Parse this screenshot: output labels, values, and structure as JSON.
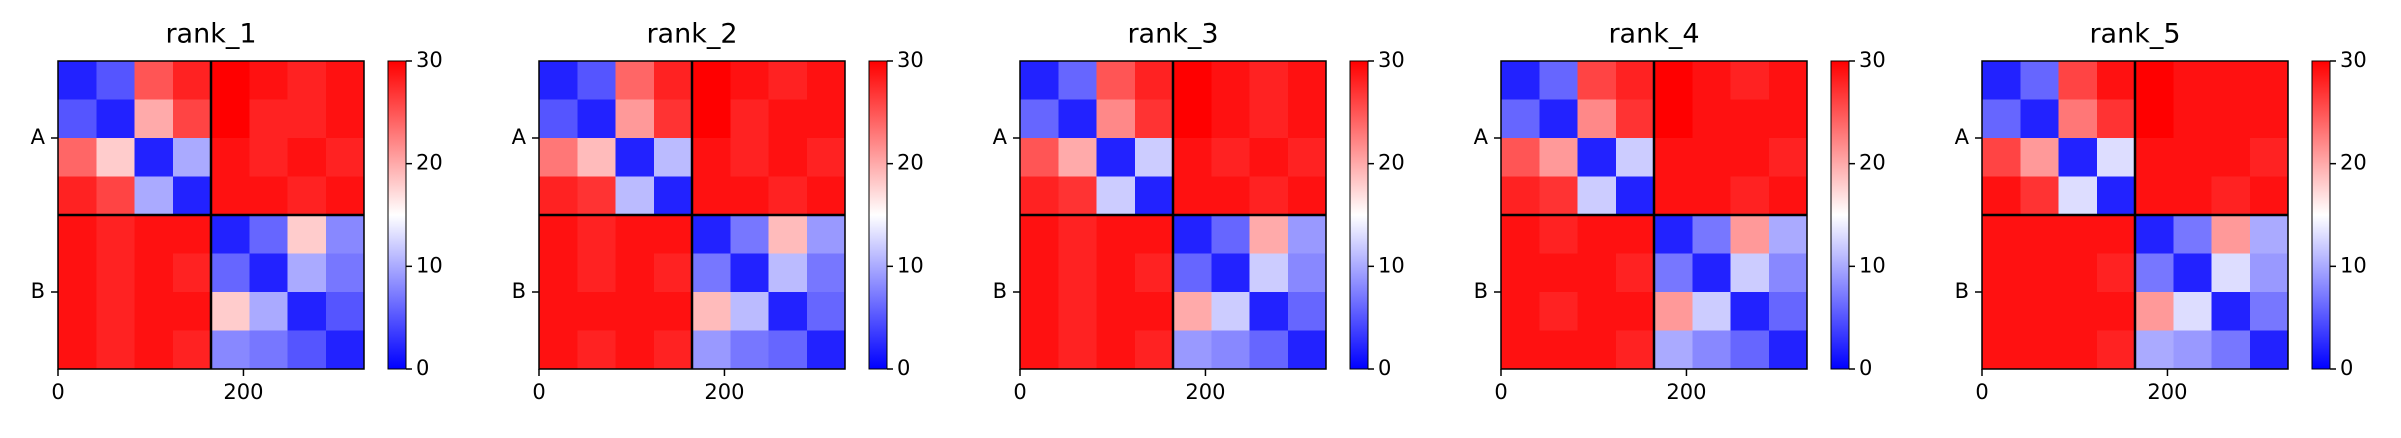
{
  "chart_data": [
    {
      "type": "heatmap",
      "title": "rank_1",
      "cmap": "bwr",
      "xlim": [
        0,
        330
      ],
      "ylim": [
        330,
        0
      ],
      "xticks": [
        0,
        200
      ],
      "yticks": [
        {
          "value": 82.5,
          "label": "A"
        },
        {
          "value": 247.5,
          "label": "B"
        }
      ],
      "chain_breaks": [
        165
      ],
      "clim": [
        0,
        30
      ],
      "cticks": [
        0,
        10,
        20,
        30
      ],
      "z": [
        [
          2,
          5,
          25,
          28,
          30,
          29,
          28,
          29
        ],
        [
          5,
          2,
          20,
          26,
          30,
          28,
          28,
          29
        ],
        [
          24,
          18,
          2,
          10,
          29,
          28,
          29,
          28
        ],
        [
          28,
          26,
          10,
          2,
          29,
          29,
          28,
          29
        ],
        [
          29,
          28,
          29,
          29,
          2,
          6,
          18,
          8
        ],
        [
          29,
          28,
          29,
          28,
          6,
          2,
          10,
          7
        ],
        [
          29,
          28,
          29,
          29,
          18,
          10,
          2,
          5
        ],
        [
          29,
          28,
          29,
          28,
          8,
          7,
          5,
          2
        ]
      ]
    },
    {
      "type": "heatmap",
      "title": "rank_2",
      "cmap": "bwr",
      "xlim": [
        0,
        330
      ],
      "ylim": [
        330,
        0
      ],
      "xticks": [
        0,
        200
      ],
      "yticks": [
        {
          "value": 82.5,
          "label": "A"
        },
        {
          "value": 247.5,
          "label": "B"
        }
      ],
      "chain_breaks": [
        165
      ],
      "clim": [
        0,
        30
      ],
      "cticks": [
        0,
        10,
        20,
        30
      ],
      "z": [
        [
          2,
          5,
          24,
          28,
          30,
          29,
          28,
          29
        ],
        [
          5,
          2,
          21,
          27,
          30,
          28,
          29,
          29
        ],
        [
          23,
          19,
          2,
          11,
          29,
          28,
          29,
          28
        ],
        [
          28,
          27,
          11,
          2,
          29,
          29,
          28,
          29
        ],
        [
          29,
          28,
          29,
          29,
          2,
          7,
          19,
          9
        ],
        [
          29,
          28,
          29,
          28,
          7,
          2,
          11,
          7
        ],
        [
          29,
          29,
          29,
          29,
          19,
          11,
          2,
          6
        ],
        [
          29,
          28,
          29,
          28,
          9,
          7,
          6,
          2
        ]
      ]
    },
    {
      "type": "heatmap",
      "title": "rank_3",
      "cmap": "bwr",
      "xlim": [
        0,
        330
      ],
      "ylim": [
        330,
        0
      ],
      "xticks": [
        0,
        200
      ],
      "yticks": [
        {
          "value": 82.5,
          "label": "A"
        },
        {
          "value": 247.5,
          "label": "B"
        }
      ],
      "chain_breaks": [
        165
      ],
      "clim": [
        0,
        30
      ],
      "cticks": [
        0,
        10,
        20,
        30
      ],
      "z": [
        [
          2,
          6,
          25,
          28,
          30,
          29,
          28,
          29
        ],
        [
          6,
          2,
          22,
          27,
          30,
          29,
          28,
          29
        ],
        [
          25,
          20,
          2,
          12,
          29,
          28,
          29,
          28
        ],
        [
          28,
          27,
          12,
          2,
          29,
          29,
          28,
          29
        ],
        [
          29,
          28,
          29,
          29,
          2,
          6,
          20,
          9
        ],
        [
          29,
          28,
          29,
          28,
          6,
          2,
          12,
          8
        ],
        [
          29,
          28,
          29,
          29,
          20,
          12,
          2,
          6
        ],
        [
          29,
          28,
          29,
          28,
          9,
          8,
          6,
          2
        ]
      ]
    },
    {
      "type": "heatmap",
      "title": "rank_4",
      "cmap": "bwr",
      "xlim": [
        0,
        330
      ],
      "ylim": [
        330,
        0
      ],
      "xticks": [
        0,
        200
      ],
      "yticks": [
        {
          "value": 82.5,
          "label": "A"
        },
        {
          "value": 247.5,
          "label": "B"
        }
      ],
      "chain_breaks": [
        165
      ],
      "clim": [
        0,
        30
      ],
      "cticks": [
        0,
        10,
        20,
        30
      ],
      "z": [
        [
          2,
          6,
          26,
          28,
          30,
          29,
          28,
          29
        ],
        [
          6,
          2,
          22,
          27,
          30,
          29,
          29,
          29
        ],
        [
          25,
          21,
          2,
          12,
          29,
          29,
          29,
          28
        ],
        [
          28,
          27,
          12,
          2,
          29,
          29,
          28,
          29
        ],
        [
          29,
          28,
          29,
          29,
          2,
          7,
          21,
          10
        ],
        [
          29,
          29,
          29,
          28,
          7,
          2,
          12,
          8
        ],
        [
          29,
          28,
          29,
          29,
          21,
          12,
          2,
          6
        ],
        [
          29,
          29,
          29,
          28,
          10,
          8,
          6,
          2
        ]
      ]
    },
    {
      "type": "heatmap",
      "title": "rank_5",
      "cmap": "bwr",
      "xlim": [
        0,
        330
      ],
      "ylim": [
        330,
        0
      ],
      "xticks": [
        0,
        200
      ],
      "yticks": [
        {
          "value": 82.5,
          "label": "A"
        },
        {
          "value": 247.5,
          "label": "B"
        }
      ],
      "chain_breaks": [
        165
      ],
      "clim": [
        0,
        30
      ],
      "cticks": [
        0,
        10,
        20,
        30
      ],
      "z": [
        [
          2,
          6,
          26,
          29,
          30,
          29,
          29,
          29
        ],
        [
          6,
          2,
          23,
          27,
          30,
          29,
          29,
          29
        ],
        [
          26,
          21,
          2,
          13,
          29,
          29,
          29,
          28
        ],
        [
          29,
          27,
          13,
          2,
          29,
          29,
          28,
          29
        ],
        [
          29,
          29,
          29,
          29,
          2,
          7,
          21,
          10
        ],
        [
          29,
          29,
          29,
          28,
          7,
          2,
          13,
          9
        ],
        [
          29,
          29,
          29,
          29,
          21,
          13,
          2,
          7
        ],
        [
          29,
          29,
          29,
          28,
          10,
          9,
          7,
          2
        ]
      ]
    }
  ]
}
